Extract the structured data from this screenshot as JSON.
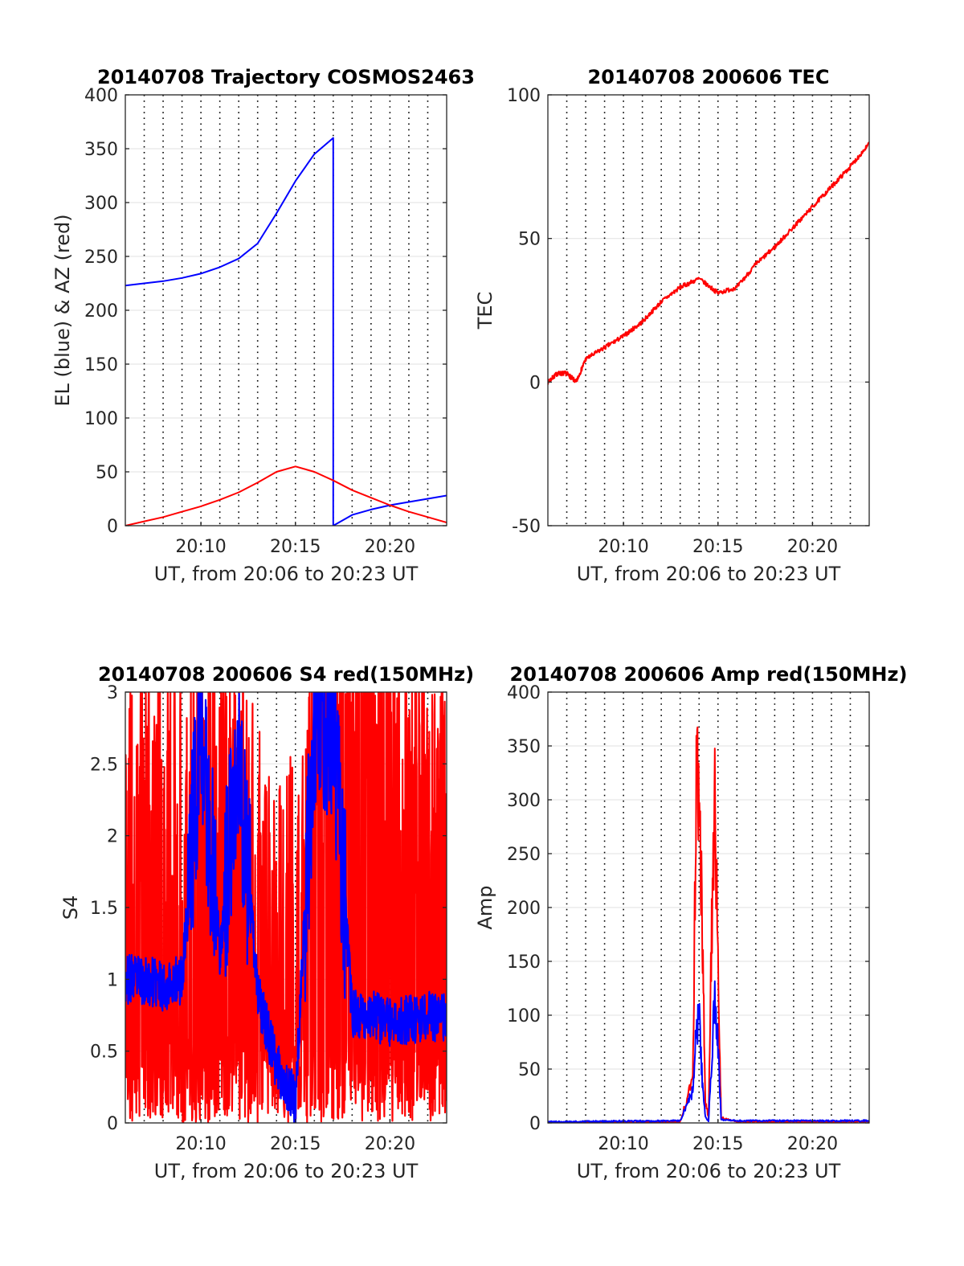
{
  "chart_data": [
    {
      "type": "line",
      "title": "20140708 Trajectory COSMOS2463",
      "xlabel": "UT, from 20:06 to 20:23 UT",
      "ylabel": "EL (blue) & AZ (red)",
      "xlim": [
        "20:06",
        "20:23"
      ],
      "ylim": [
        0,
        400
      ],
      "yticks": [
        "0",
        "50",
        "100",
        "150",
        "200",
        "250",
        "300",
        "350",
        "400"
      ],
      "xticks": [
        "20:10",
        "20:15",
        "20:20"
      ],
      "grid": true,
      "colors": {
        "EL": "#0000ff",
        "AZ": "#ff0000"
      },
      "series": [
        {
          "x": [
            "20:06",
            "20:07",
            "20:08",
            "20:09",
            "20:10",
            "20:11",
            "20:12",
            "20:13",
            "20:14",
            "20:15",
            "20:16",
            "20:17",
            "20:17",
            "20:18",
            "20:19",
            "20:20",
            "20:21",
            "20:22",
            "20:23"
          ],
          "values": [
            223,
            225,
            227,
            230,
            234,
            240,
            248,
            262,
            290,
            320,
            345,
            360,
            0,
            10,
            15,
            19,
            22,
            25,
            28
          ]
        },
        {
          "x": [
            "20:06",
            "20:07",
            "20:08",
            "20:09",
            "20:10",
            "20:11",
            "20:12",
            "20:13",
            "20:14",
            "20:15",
            "20:16",
            "20:17",
            "20:18",
            "20:19",
            "20:20",
            "20:21",
            "20:22",
            "20:23"
          ],
          "values": [
            0,
            4,
            8,
            13,
            18,
            24,
            31,
            40,
            50,
            55,
            50,
            42,
            33,
            26,
            19,
            13,
            8,
            3
          ]
        }
      ]
    },
    {
      "type": "line",
      "title": "20140708 200606 TEC",
      "xlabel": "UT, from 20:06 to 20:23 UT",
      "ylabel": "TEC",
      "xlim": [
        "20:06",
        "20:23"
      ],
      "ylim": [
        -50,
        100
      ],
      "yticks": [
        "-50",
        "0",
        "50",
        "100"
      ],
      "xticks": [
        "20:10",
        "20:15",
        "20:20"
      ],
      "grid": true,
      "colors": {
        "TEC": "#ff0000"
      },
      "series": [
        {
          "x": [
            "20:06",
            "20:06:30",
            "20:07",
            "20:07:30",
            "20:08",
            "20:09",
            "20:10",
            "20:11",
            "20:12",
            "20:13",
            "20:14",
            "20:15",
            "20:16",
            "20:17",
            "20:18",
            "20:19",
            "20:20",
            "20:21",
            "20:22",
            "20:23"
          ],
          "values": [
            0,
            3,
            3,
            0,
            8,
            12,
            16,
            21,
            28,
            33,
            36,
            31,
            33,
            41,
            47,
            54,
            61,
            68,
            75,
            83
          ]
        }
      ]
    },
    {
      "type": "line",
      "title": "20140708 200606 S4 red(150MHz)",
      "xlabel": "UT, from 20:06 to 20:23 UT",
      "ylabel": "S4",
      "xlim": [
        "20:06",
        "20:23"
      ],
      "ylim": [
        0,
        3
      ],
      "yticks": [
        "0",
        "0.5",
        "1",
        "1.5",
        "2",
        "2.5",
        "3"
      ],
      "xticks": [
        "20:10",
        "20:15",
        "20:20"
      ],
      "grid": true,
      "colors": {
        "red": "#ff0000",
        "blue": "#0000ff"
      },
      "series": [
        {
          "x": [
            "20:06",
            "20:07",
            "20:08",
            "20:09",
            "20:10",
            "20:11",
            "20:12",
            "20:13",
            "20:14",
            "20:15",
            "20:16",
            "20:17",
            "20:18",
            "20:19",
            "20:20",
            "20:21",
            "20:22",
            "20:23"
          ],
          "values": [
            1.5,
            1.5,
            1.5,
            1.5,
            2.0,
            1.8,
            1.6,
            1.0,
            0.6,
            0.9,
            1.6,
            2.2,
            2.5,
            2.3,
            1.8,
            1.5,
            1.5,
            1.5
          ]
        },
        {
          "x": [
            "20:06",
            "20:07",
            "20:08",
            "20:09",
            "20:10",
            "20:11",
            "20:12",
            "20:13",
            "20:14",
            "20:15",
            "20:16",
            "20:17",
            "20:18",
            "20:19",
            "20:20",
            "20:21",
            "20:22",
            "20:23"
          ],
          "values": [
            1.0,
            1.0,
            0.95,
            1.0,
            2.8,
            1.2,
            2.5,
            0.9,
            0.4,
            0.15,
            2.8,
            2.8,
            0.75,
            0.75,
            0.7,
            0.72,
            0.75,
            0.72
          ]
        }
      ]
    },
    {
      "type": "line",
      "title": "20140708 200606 Amp red(150MHz)",
      "xlabel": "UT, from 20:06 to 20:23 UT",
      "ylabel": "Amp",
      "xlim": [
        "20:06",
        "20:23"
      ],
      "ylim": [
        0,
        400
      ],
      "yticks": [
        "0",
        "50",
        "100",
        "150",
        "200",
        "250",
        "300",
        "350",
        "400"
      ],
      "xticks": [
        "20:10",
        "20:15",
        "20:20"
      ],
      "grid": true,
      "colors": {
        "red": "#ff0000",
        "blue": "#0000ff"
      },
      "series": [
        {
          "x": [
            "20:06",
            "20:13",
            "20:13:40",
            "20:13:50",
            "20:14",
            "20:14:10",
            "20:14:20",
            "20:14:30",
            "20:14:40",
            "20:14:50",
            "20:15",
            "20:15:10",
            "20:16",
            "20:23"
          ],
          "values": [
            0,
            1,
            40,
            300,
            330,
            180,
            20,
            5,
            180,
            305,
            150,
            5,
            1,
            1
          ]
        },
        {
          "x": [
            "20:06",
            "20:13",
            "20:13:40",
            "20:13:50",
            "20:14",
            "20:14:10",
            "20:14:20",
            "20:14:30",
            "20:14:40",
            "20:14:50",
            "20:15",
            "20:15:10",
            "20:16",
            "20:23"
          ],
          "values": [
            1,
            2,
            30,
            80,
            100,
            40,
            5,
            2,
            60,
            125,
            70,
            3,
            2,
            2
          ]
        }
      ]
    }
  ]
}
